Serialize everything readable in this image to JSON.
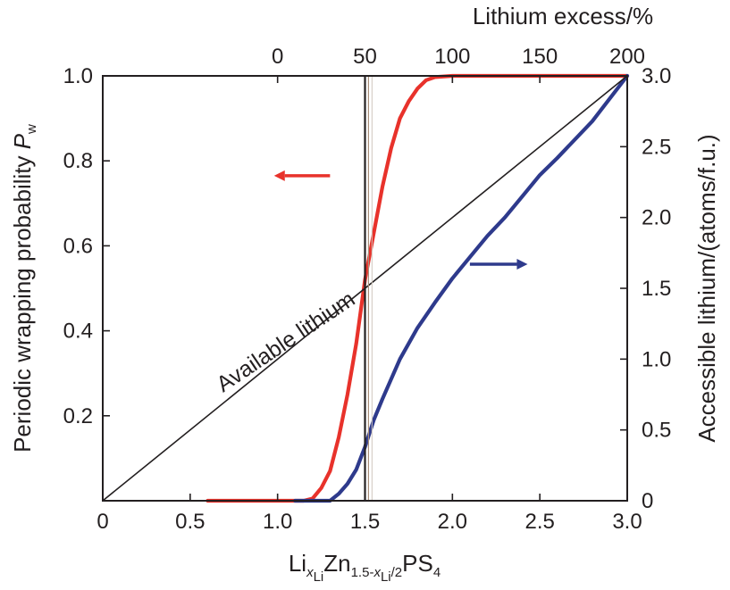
{
  "chart_data": {
    "type": "line",
    "bottom_axis": {
      "label_parts": [
        "Li",
        "x",
        "Li",
        "Zn",
        "1.5-",
        "x",
        "Li",
        "/2",
        "PS",
        "4"
      ],
      "ticks": [
        0,
        0.5,
        1.0,
        1.5,
        2.0,
        2.5,
        3.0
      ],
      "tick_labels": [
        "0",
        "0.5",
        "1.0",
        "1.5",
        "2.0",
        "2.5",
        "3.0"
      ],
      "range": [
        0,
        3.0
      ]
    },
    "top_axis": {
      "label": "Lithium excess/%",
      "ticks": [
        0,
        50,
        100,
        150,
        200
      ],
      "tick_labels": [
        "0",
        "50",
        "100",
        "150",
        "200"
      ],
      "data_range": [
        -100,
        200
      ]
    },
    "left_axis": {
      "label": "Periodic wrapping probability ",
      "label_symbol": "P",
      "label_subscript": "w",
      "ticks": [
        0.2,
        0.4,
        0.6,
        0.8,
        1.0
      ],
      "tick_labels": [
        "0.2",
        "0.4",
        "0.6",
        "0.8",
        "1.0"
      ],
      "range": [
        0,
        1.0
      ]
    },
    "right_axis": {
      "label": "Accessible lithium/(atoms/f.u.)",
      "ticks": [
        0,
        0.5,
        1.0,
        1.5,
        2.0,
        2.5,
        3.0
      ],
      "tick_labels": [
        "0",
        "0.5",
        "1.0",
        "1.5",
        "2.0",
        "2.5",
        "3.0"
      ],
      "range": [
        0,
        3.0
      ]
    },
    "series": [
      {
        "axis": "left",
        "color": "#e8322b",
        "x": [
          0.6,
          1.15,
          1.2,
          1.25,
          1.3,
          1.35,
          1.4,
          1.45,
          1.5,
          1.55,
          1.6,
          1.65,
          1.7,
          1.75,
          1.8,
          1.85,
          1.9,
          2.0,
          2.5,
          3.0
        ],
        "y": [
          0.0,
          0.0,
          0.005,
          0.03,
          0.07,
          0.15,
          0.25,
          0.37,
          0.52,
          0.63,
          0.74,
          0.83,
          0.9,
          0.94,
          0.97,
          0.99,
          0.997,
          1.0,
          1.0,
          1.0
        ]
      },
      {
        "axis": "right",
        "color": "#2e3a8c",
        "x": [
          1.1,
          1.3,
          1.35,
          1.4,
          1.45,
          1.5,
          1.55,
          1.6,
          1.7,
          1.8,
          1.9,
          2.0,
          2.1,
          2.2,
          2.3,
          2.4,
          2.5,
          2.6,
          2.8,
          3.0
        ],
        "y": [
          0.0,
          0.0,
          0.05,
          0.12,
          0.22,
          0.38,
          0.57,
          0.72,
          1.0,
          1.22,
          1.4,
          1.57,
          1.72,
          1.87,
          2.0,
          2.15,
          2.3,
          2.42,
          2.68,
          3.0
        ]
      },
      {
        "axis": "right",
        "color": "#231f20",
        "x": [
          0,
          3.0
        ],
        "y": [
          0,
          3.0
        ]
      }
    ],
    "vertical_lines": [
      {
        "x": 1.5,
        "color": "#231f20",
        "width": 2.2
      },
      {
        "x": 1.52,
        "color": "#a88f7a",
        "width": 1.2
      },
      {
        "x": 1.54,
        "color": "#cfc6bc",
        "width": 1.0
      }
    ],
    "annotations": [
      {
        "text": "Available lithium",
        "x": 1.07,
        "y_right": 1.08,
        "rotate_deg": -34
      }
    ],
    "arrows": [
      {
        "direction": "left",
        "color": "#e8322b",
        "x_from": 1.3,
        "x_to": 0.98,
        "y_left": 0.765
      },
      {
        "direction": "right",
        "color": "#2e3a8c",
        "x_from": 2.1,
        "x_to": 2.43,
        "y_right": 1.67
      }
    ]
  }
}
